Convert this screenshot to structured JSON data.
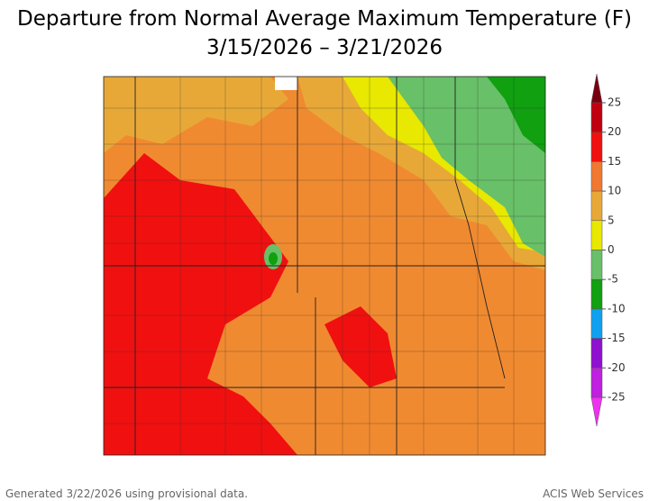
{
  "title": [
    "Departure from Normal Average Maximum Temperature (F)",
    "3/15/2026 – 3/21/2026"
  ],
  "legend": {
    "ticks": [
      25,
      20,
      15,
      10,
      5,
      0,
      -5,
      -10,
      -15,
      -20,
      -25
    ],
    "colors": [
      "#7a0010",
      "#c00010",
      "#f01010",
      "#f07830",
      "#e8a838",
      "#e8e800",
      "#68c068",
      "#10a010",
      "#10a0f0",
      "#9010d0",
      "#c020e0",
      "#f030f0"
    ]
  },
  "footer": {
    "left": "Generated 3/22/2026 using provisional data.",
    "right": "ACIS Web Services"
  }
}
